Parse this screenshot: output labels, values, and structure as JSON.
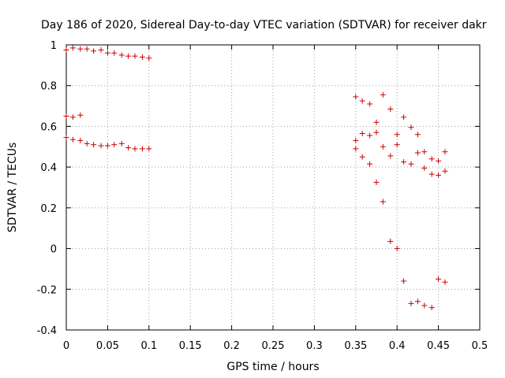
{
  "chart_data": {
    "type": "scatter",
    "title": "Day 186 of 2020, Sidereal Day-to-day VTEC variation (SDTVAR) for receiver dakr",
    "xlabel": "GPS time / hours",
    "ylabel": "SDTVAR / TECUs",
    "xlim": [
      0,
      0.5
    ],
    "ylim": [
      -0.4,
      1
    ],
    "xticks": [
      0,
      0.05,
      0.1,
      0.15,
      0.2,
      0.25,
      0.3,
      0.35,
      0.4,
      0.45,
      0.5
    ],
    "xtick_labels": [
      "0",
      "0.05",
      "0.1",
      "0.15",
      "0.2",
      "0.25",
      "0.3",
      "0.35",
      "0.4",
      "0.45",
      "0.5"
    ],
    "yticks": [
      -0.4,
      -0.2,
      0,
      0.2,
      0.4,
      0.6,
      0.8,
      1
    ],
    "ytick_labels": [
      "-0.4",
      "-0.2",
      "0",
      "0.2",
      "0.4",
      "0.6",
      "0.8",
      "1"
    ],
    "grid": true,
    "marker": "+",
    "color": "#cc0000",
    "points": [
      [
        0,
        0.975
      ],
      [
        0.008,
        0.985
      ],
      [
        0.017,
        0.98
      ],
      [
        0.025,
        0.98
      ],
      [
        0.033,
        0.97
      ],
      [
        0.042,
        0.975
      ],
      [
        0.05,
        0.96
      ],
      [
        0.058,
        0.96
      ],
      [
        0.067,
        0.95
      ],
      [
        0.075,
        0.945
      ],
      [
        0.083,
        0.945
      ],
      [
        0.092,
        0.94
      ],
      [
        0.1,
        0.935
      ],
      [
        0,
        0.65
      ],
      [
        0.008,
        0.645
      ],
      [
        0.017,
        0.655
      ],
      [
        0,
        0.545
      ],
      [
        0.008,
        0.535
      ],
      [
        0.017,
        0.53
      ],
      [
        0.025,
        0.515
      ],
      [
        0.033,
        0.51
      ],
      [
        0.042,
        0.505
      ],
      [
        0.05,
        0.505
      ],
      [
        0.058,
        0.51
      ],
      [
        0.067,
        0.515
      ],
      [
        0.075,
        0.495
      ],
      [
        0.083,
        0.49
      ],
      [
        0.092,
        0.49
      ],
      [
        0.1,
        0.49
      ],
      [
        0.35,
        0.745
      ],
      [
        0.358,
        0.725
      ],
      [
        0.367,
        0.71
      ],
      [
        0.383,
        0.755
      ],
      [
        0.392,
        0.685
      ],
      [
        0.408,
        0.645
      ],
      [
        0.417,
        0.595
      ],
      [
        0.375,
        0.62
      ],
      [
        0.358,
        0.565
      ],
      [
        0.367,
        0.555
      ],
      [
        0.375,
        0.57
      ],
      [
        0.425,
        0.56
      ],
      [
        0.4,
        0.56
      ],
      [
        0.35,
        0.53
      ],
      [
        0.35,
        0.49
      ],
      [
        0.383,
        0.5
      ],
      [
        0.4,
        0.51
      ],
      [
        0.392,
        0.455
      ],
      [
        0.358,
        0.45
      ],
      [
        0.367,
        0.415
      ],
      [
        0.408,
        0.425
      ],
      [
        0.417,
        0.415
      ],
      [
        0.425,
        0.47
      ],
      [
        0.433,
        0.475
      ],
      [
        0.458,
        0.475
      ],
      [
        0.442,
        0.44
      ],
      [
        0.45,
        0.43
      ],
      [
        0.433,
        0.395
      ],
      [
        0.442,
        0.365
      ],
      [
        0.45,
        0.36
      ],
      [
        0.458,
        0.38
      ],
      [
        0.375,
        0.325
      ],
      [
        0.383,
        0.23
      ],
      [
        0.392,
        0.035
      ],
      [
        0.4,
        0
      ],
      [
        0.408,
        -0.16
      ],
      [
        0.45,
        -0.15
      ],
      [
        0.458,
        -0.165
      ],
      [
        0.417,
        -0.27
      ],
      [
        0.425,
        -0.26
      ],
      [
        0.433,
        -0.28
      ],
      [
        0.442,
        -0.29
      ]
    ]
  }
}
